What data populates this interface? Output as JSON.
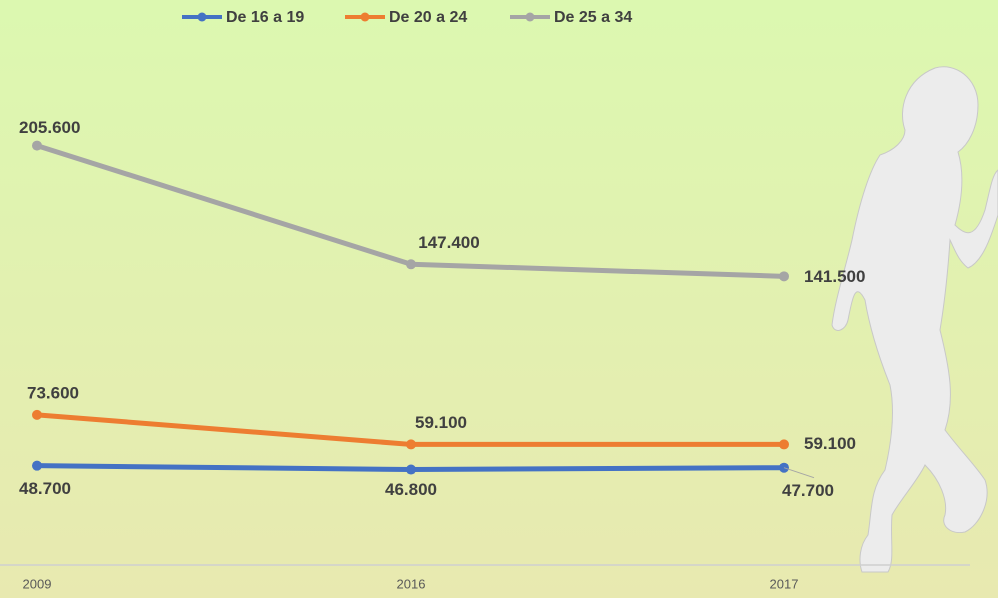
{
  "chart_data": {
    "type": "line",
    "categories": [
      "2009",
      "2016",
      "2017"
    ],
    "series": [
      {
        "name": "De 16 a 19",
        "color": "#4472c4",
        "values": [
          48700,
          46800,
          47700
        ],
        "value_labels": [
          "48.700",
          "46.800",
          "47.700"
        ]
      },
      {
        "name": "De 20 a 24",
        "color": "#ed7d31",
        "values": [
          73600,
          59100,
          59100
        ],
        "value_labels": [
          "73.600",
          "59.100",
          "59.100"
        ]
      },
      {
        "name": "De 25 a 34",
        "color": "#a5a5a5",
        "values": [
          205600,
          147400,
          141500
        ],
        "value_labels": [
          "205.600",
          "147.400",
          "141.500"
        ]
      }
    ],
    "ylim": [
      0,
      250000
    ]
  }
}
